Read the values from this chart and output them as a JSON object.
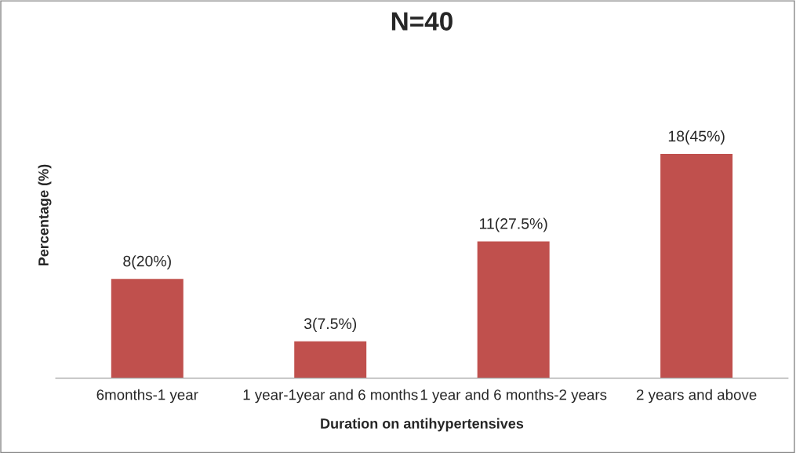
{
  "chart_data": {
    "type": "bar",
    "title": "N=40",
    "xlabel": "Duration on antihypertensives",
    "ylabel": "Percentage (%)",
    "categories": [
      "6months-1 year",
      "1 year-1year and 6 months",
      "1 year and 6 months-2 years",
      "2 years and above"
    ],
    "values": [
      20,
      7.5,
      27.5,
      45
    ],
    "color": "#c0504d",
    "value_labels": [
      "8(20%)",
      "3(7.5%)",
      "11(27.5%)",
      "18(45%)"
    ],
    "grid": false,
    "legend": false,
    "tick_labels": "x"
  }
}
